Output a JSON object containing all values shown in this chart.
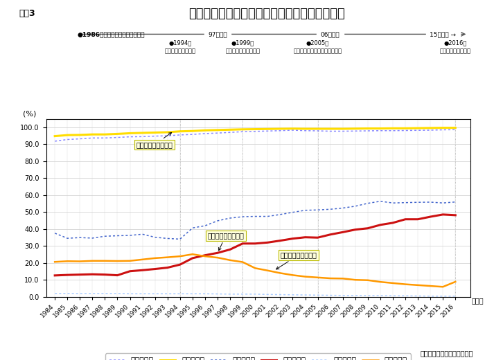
{
  "title": "女性雇用と子育て支援政策、及び進学率の推移",
  "figure_label": "図表3",
  "years": [
    1984,
    1985,
    1986,
    1987,
    1988,
    1989,
    1990,
    1991,
    1992,
    1993,
    1994,
    1995,
    1996,
    1997,
    1998,
    1999,
    2000,
    2001,
    2002,
    2003,
    2004,
    2005,
    2006,
    2007,
    2008,
    2009,
    2010,
    2011,
    2012,
    2013,
    2014,
    2015,
    2016
  ],
  "高校男": [
    91.8,
    92.8,
    93.2,
    93.7,
    93.7,
    94.0,
    94.4,
    94.5,
    94.8,
    95.0,
    95.5,
    95.8,
    96.3,
    96.6,
    97.0,
    97.4,
    97.6,
    97.8,
    98.0,
    98.3,
    98.0,
    97.9,
    97.7,
    97.7,
    97.8,
    97.9,
    98.0,
    98.0,
    98.1,
    98.2,
    98.3,
    98.5,
    98.6
  ],
  "高校女": [
    94.8,
    95.4,
    95.5,
    95.8,
    95.8,
    96.1,
    96.5,
    96.7,
    96.9,
    97.1,
    97.6,
    97.8,
    98.2,
    98.4,
    98.6,
    98.8,
    98.9,
    99.0,
    99.1,
    99.2,
    99.1,
    99.1,
    99.1,
    99.1,
    99.2,
    99.3,
    99.3,
    99.4,
    99.4,
    99.5,
    99.6,
    99.7,
    99.7
  ],
  "大学男": [
    37.6,
    34.6,
    35.0,
    34.7,
    35.8,
    36.1,
    36.3,
    37.0,
    35.2,
    34.5,
    34.1,
    40.7,
    42.0,
    44.9,
    46.5,
    47.3,
    47.5,
    47.5,
    48.6,
    49.9,
    51.1,
    51.3,
    51.7,
    52.4,
    53.5,
    55.2,
    56.4,
    55.4,
    55.6,
    55.8,
    55.9,
    55.4,
    56.0
  ],
  "大学女": [
    12.7,
    13.0,
    13.2,
    13.4,
    13.2,
    12.8,
    15.2,
    15.8,
    16.5,
    17.3,
    19.1,
    22.9,
    24.6,
    26.0,
    28.0,
    31.5,
    31.5,
    32.1,
    33.2,
    34.4,
    35.2,
    35.0,
    36.8,
    38.2,
    39.7,
    40.5,
    42.5,
    43.7,
    45.8,
    45.8,
    47.3,
    48.6,
    48.2
  ],
  "短大男": [
    2.1,
    2.1,
    2.0,
    2.0,
    2.0,
    2.0,
    1.9,
    1.9,
    1.9,
    1.9,
    1.9,
    1.9,
    1.9,
    1.8,
    1.7,
    1.7,
    1.7,
    1.5,
    1.4,
    1.3,
    1.2,
    1.1,
    1.0,
    0.9,
    0.9,
    0.8,
    0.8,
    0.7,
    0.7,
    0.6,
    0.5,
    0.5,
    0.5
  ],
  "短大女": [
    20.7,
    21.1,
    21.0,
    21.3,
    21.3,
    21.2,
    21.3,
    22.1,
    22.9,
    23.4,
    24.0,
    25.2,
    24.0,
    23.2,
    21.7,
    20.6,
    17.0,
    15.6,
    14.1,
    12.9,
    12.0,
    11.5,
    11.0,
    10.9,
    10.1,
    9.9,
    8.9,
    8.2,
    7.5,
    7.0,
    6.5,
    6.0,
    9.0
  ],
  "colors": {
    "高校男": "#8888ff",
    "高校女": "#ffdd00",
    "大学男": "#4466cc",
    "大学女": "#cc1111",
    "短大男": "#aaccff",
    "短大女": "#ff9900"
  },
  "ylabel": "(%)",
  "source": "文部科学省「学校基本調査」",
  "ylim": [
    0,
    105
  ],
  "yticks": [
    0.0,
    10.0,
    20.0,
    30.0,
    40.0,
    50.0,
    60.0,
    70.0,
    80.0,
    90.0,
    100.0
  ],
  "bg_color": "#ffffff"
}
